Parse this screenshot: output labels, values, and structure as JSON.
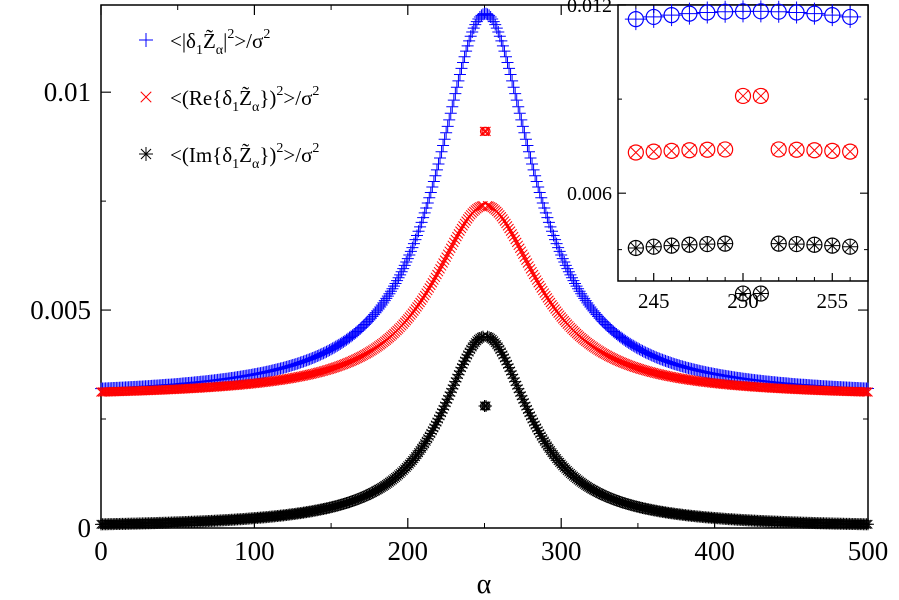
{
  "chart_data": [
    {
      "id": "main",
      "type": "scatter",
      "xlabel": "α",
      "ylabel": "",
      "xlim": [
        0,
        500
      ],
      "ylim": [
        0,
        0.012
      ],
      "xticks": [
        0,
        100,
        200,
        300,
        400,
        500
      ],
      "xtick_labels": [
        "0",
        "100",
        "200",
        "300",
        "400",
        "500"
      ],
      "yticks": [
        0,
        0.005,
        0.01
      ],
      "ytick_labels": [
        "0",
        "0.005",
        "0.01"
      ],
      "legend_position": "top-left",
      "series": [
        {
          "key": "abs",
          "name": "<|δ₁Z̃α|²>/σ²",
          "legend_label_parts": [
            "<|δ",
            "1",
            "Z̃",
            "α",
            "|",
            "2",
            ">/σ",
            "2"
          ],
          "marker": "plus",
          "color": "#0000ff",
          "baseline": 0.003,
          "peak": 0.0118,
          "center": 250.5,
          "width": 38,
          "spike": null
        },
        {
          "key": "re",
          "name": "<(Re{δ₁Z̃α})²>/σ²",
          "legend_label_parts": [
            "<(Re{δ",
            "1",
            "Z̃",
            "α",
            "})",
            "2",
            ">/σ",
            "2"
          ],
          "marker": "x",
          "color": "#ff0000",
          "baseline": 0.003,
          "peak": 0.0074,
          "center": 250.5,
          "width": 42,
          "spike": {
            "x": [
              250,
              251
            ],
            "y": 0.0091
          }
        },
        {
          "key": "im",
          "name": "<(Im{δ₁Z̃α})²>/σ²",
          "legend_label_parts": [
            "<(Im{δ",
            "1",
            "Z̃",
            "α",
            "})",
            "2",
            ">/σ",
            "2"
          ],
          "marker": "star",
          "color": "#000000",
          "baseline": 0.0,
          "peak": 0.0044,
          "center": 250.5,
          "width": 35,
          "spike": {
            "x": [
              250,
              251
            ],
            "y": 0.0028
          }
        }
      ]
    },
    {
      "id": "inset",
      "type": "scatter",
      "xlim": [
        243,
        257
      ],
      "ylim": [
        0.0032,
        0.012
      ],
      "xticks": [
        245,
        250,
        255
      ],
      "xtick_labels": [
        "245",
        "250",
        "255"
      ],
      "yticks": [
        0.006,
        0.012
      ],
      "ytick_labels": [
        "0.006",
        "0.012"
      ],
      "minor_yticks": [
        0.0042,
        0.009
      ],
      "circles_overlay": true
    }
  ]
}
